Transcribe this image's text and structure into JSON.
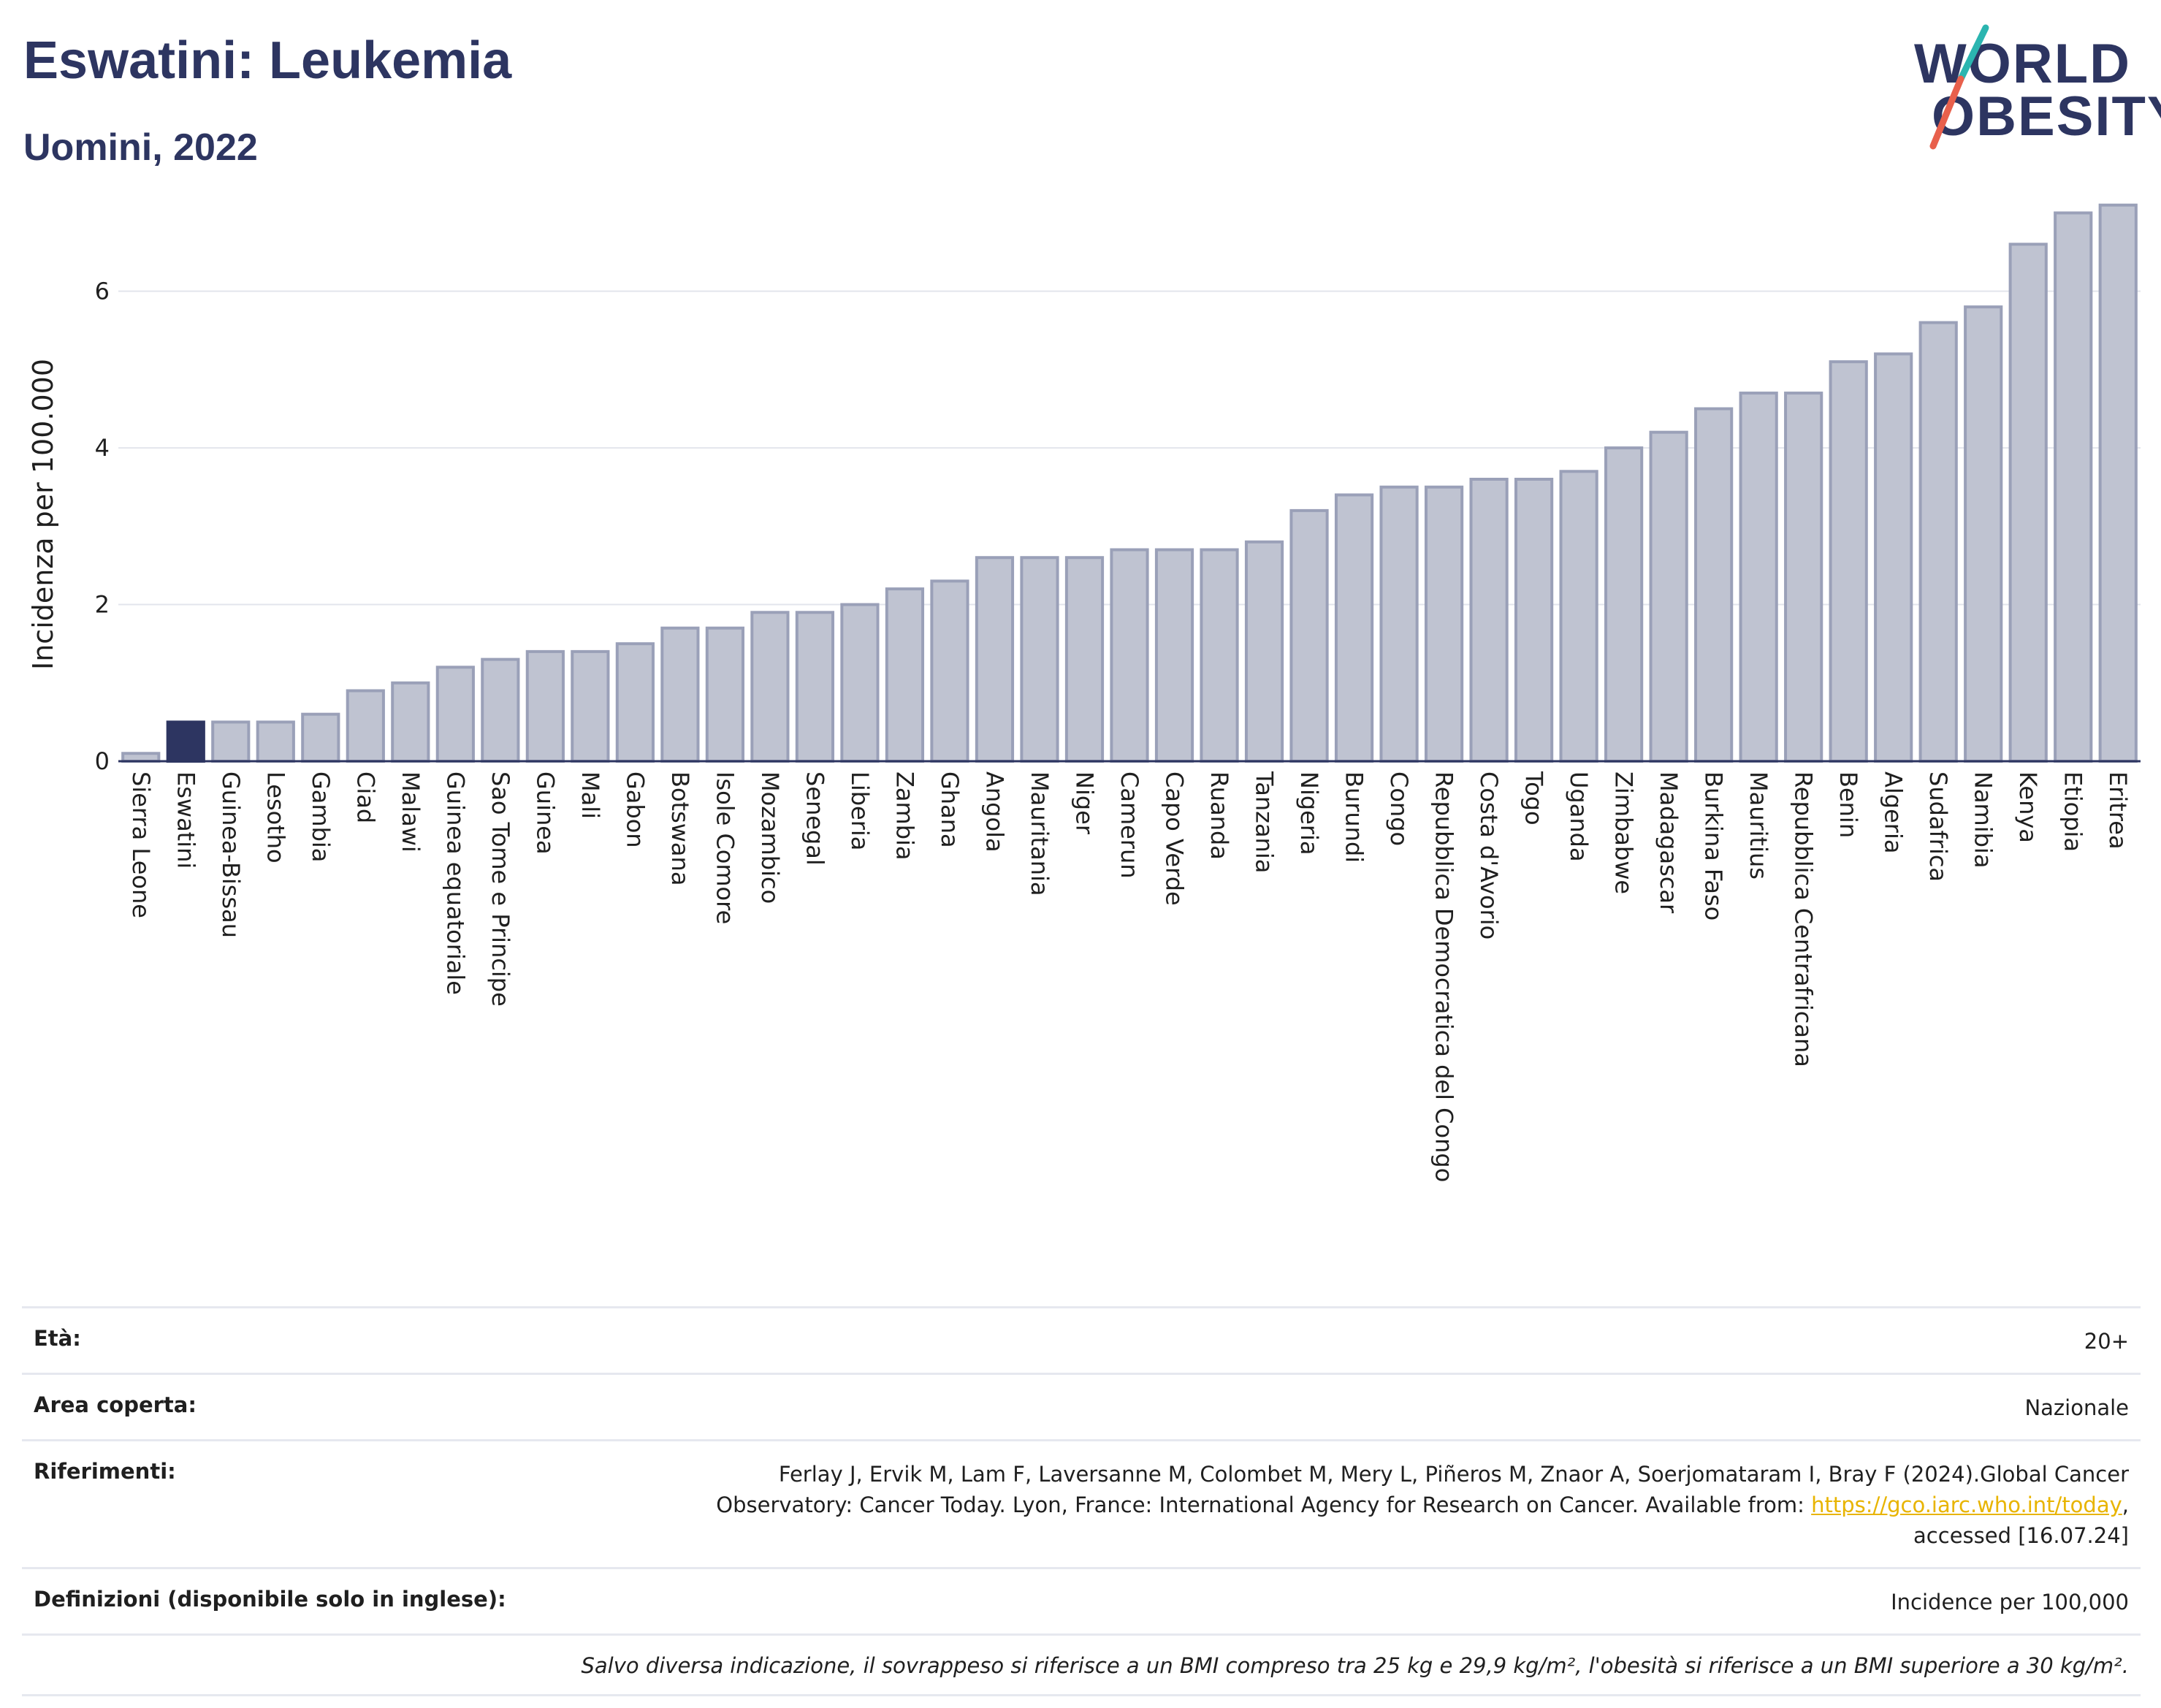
{
  "header": {
    "title": "Eswatini: Leukemia",
    "subtitle": "Uomini, 2022"
  },
  "logo": {
    "line1": "WORLD",
    "line2": "OBESITY",
    "colors": {
      "text": "#2d3561",
      "slash_top": "#2bb5b0",
      "slash_bottom": "#e8604c"
    }
  },
  "chart_data": {
    "type": "bar",
    "title": "Eswatini: Leukemia",
    "subtitle": "Uomini, 2022",
    "xlabel": "",
    "ylabel": "Incidenza per 100.000",
    "ylim": [
      0,
      7.2
    ],
    "yticks": [
      0,
      2,
      4,
      6
    ],
    "grid": true,
    "highlight": "Eswatini",
    "colors": {
      "bar": "#bfc3d1",
      "bar_edge": "#9aa0b8",
      "highlight": "#2d3561",
      "axis": "#2d3561",
      "grid": "#e3e5ec"
    },
    "categories": [
      "Sierra Leone",
      "Eswatini",
      "Guinea-Bissau",
      "Lesotho",
      "Gambia",
      "Ciad",
      "Malawi",
      "Guinea equatoriale",
      "Sao Tome e Principe",
      "Guinea",
      "Mali",
      "Gabon",
      "Botswana",
      "Isole Comore",
      "Mozambico",
      "Senegal",
      "Liberia",
      "Zambia",
      "Ghana",
      "Angola",
      "Mauritania",
      "Niger",
      "Camerun",
      "Capo Verde",
      "Ruanda",
      "Tanzania",
      "Nigeria",
      "Burundi",
      "Congo",
      "Repubblica Democratica del Congo",
      "Costa d'Avorio",
      "Togo",
      "Uganda",
      "Zimbabwe",
      "Madagascar",
      "Burkina Faso",
      "Mauritius",
      "Repubblica Centrafricana",
      "Benin",
      "Algeria",
      "Sudafrica",
      "Namibia",
      "Kenya",
      "Etiopia",
      "Eritrea"
    ],
    "values": [
      0.1,
      0.5,
      0.5,
      0.5,
      0.6,
      0.9,
      1.0,
      1.2,
      1.3,
      1.4,
      1.4,
      1.5,
      1.7,
      1.7,
      1.9,
      1.9,
      2.0,
      2.2,
      2.3,
      2.6,
      2.6,
      2.6,
      2.7,
      2.7,
      2.7,
      2.8,
      3.2,
      3.4,
      3.5,
      3.5,
      3.6,
      3.6,
      3.7,
      4.0,
      4.2,
      4.5,
      4.7,
      4.7,
      5.1,
      5.2,
      5.6,
      5.8,
      6.6,
      7.0,
      7.1
    ]
  },
  "info": {
    "rows": [
      {
        "key": "Età:",
        "value": "20+"
      },
      {
        "key": "Area coperta:",
        "value": "Nazionale"
      },
      {
        "key": "Riferimenti:",
        "value_line1": "Ferlay J, Ervik M, Lam F, Laversanne M, Colombet M, Mery L, Piñeros M, Znaor A, Soerjomataram I, Bray F (2024).Global Cancer",
        "value_line2": "Observatory: Cancer Today. Lyon, France: International Agency for Research on Cancer. Available from: ",
        "link": "https://gco.iarc.who.int/today",
        "value_line2_end": ",",
        "value_line3": "accessed [16.07.24]"
      },
      {
        "key": "Definizioni (disponibile solo in inglese):",
        "value": "Incidence per 100,000"
      }
    ],
    "note": "Salvo diversa indicazione, il sovrappeso si riferisce a un BMI compreso tra 25 kg e 29,9 kg/m², l'obesità si riferisce a un BMI superiore a 30 kg/m²."
  }
}
